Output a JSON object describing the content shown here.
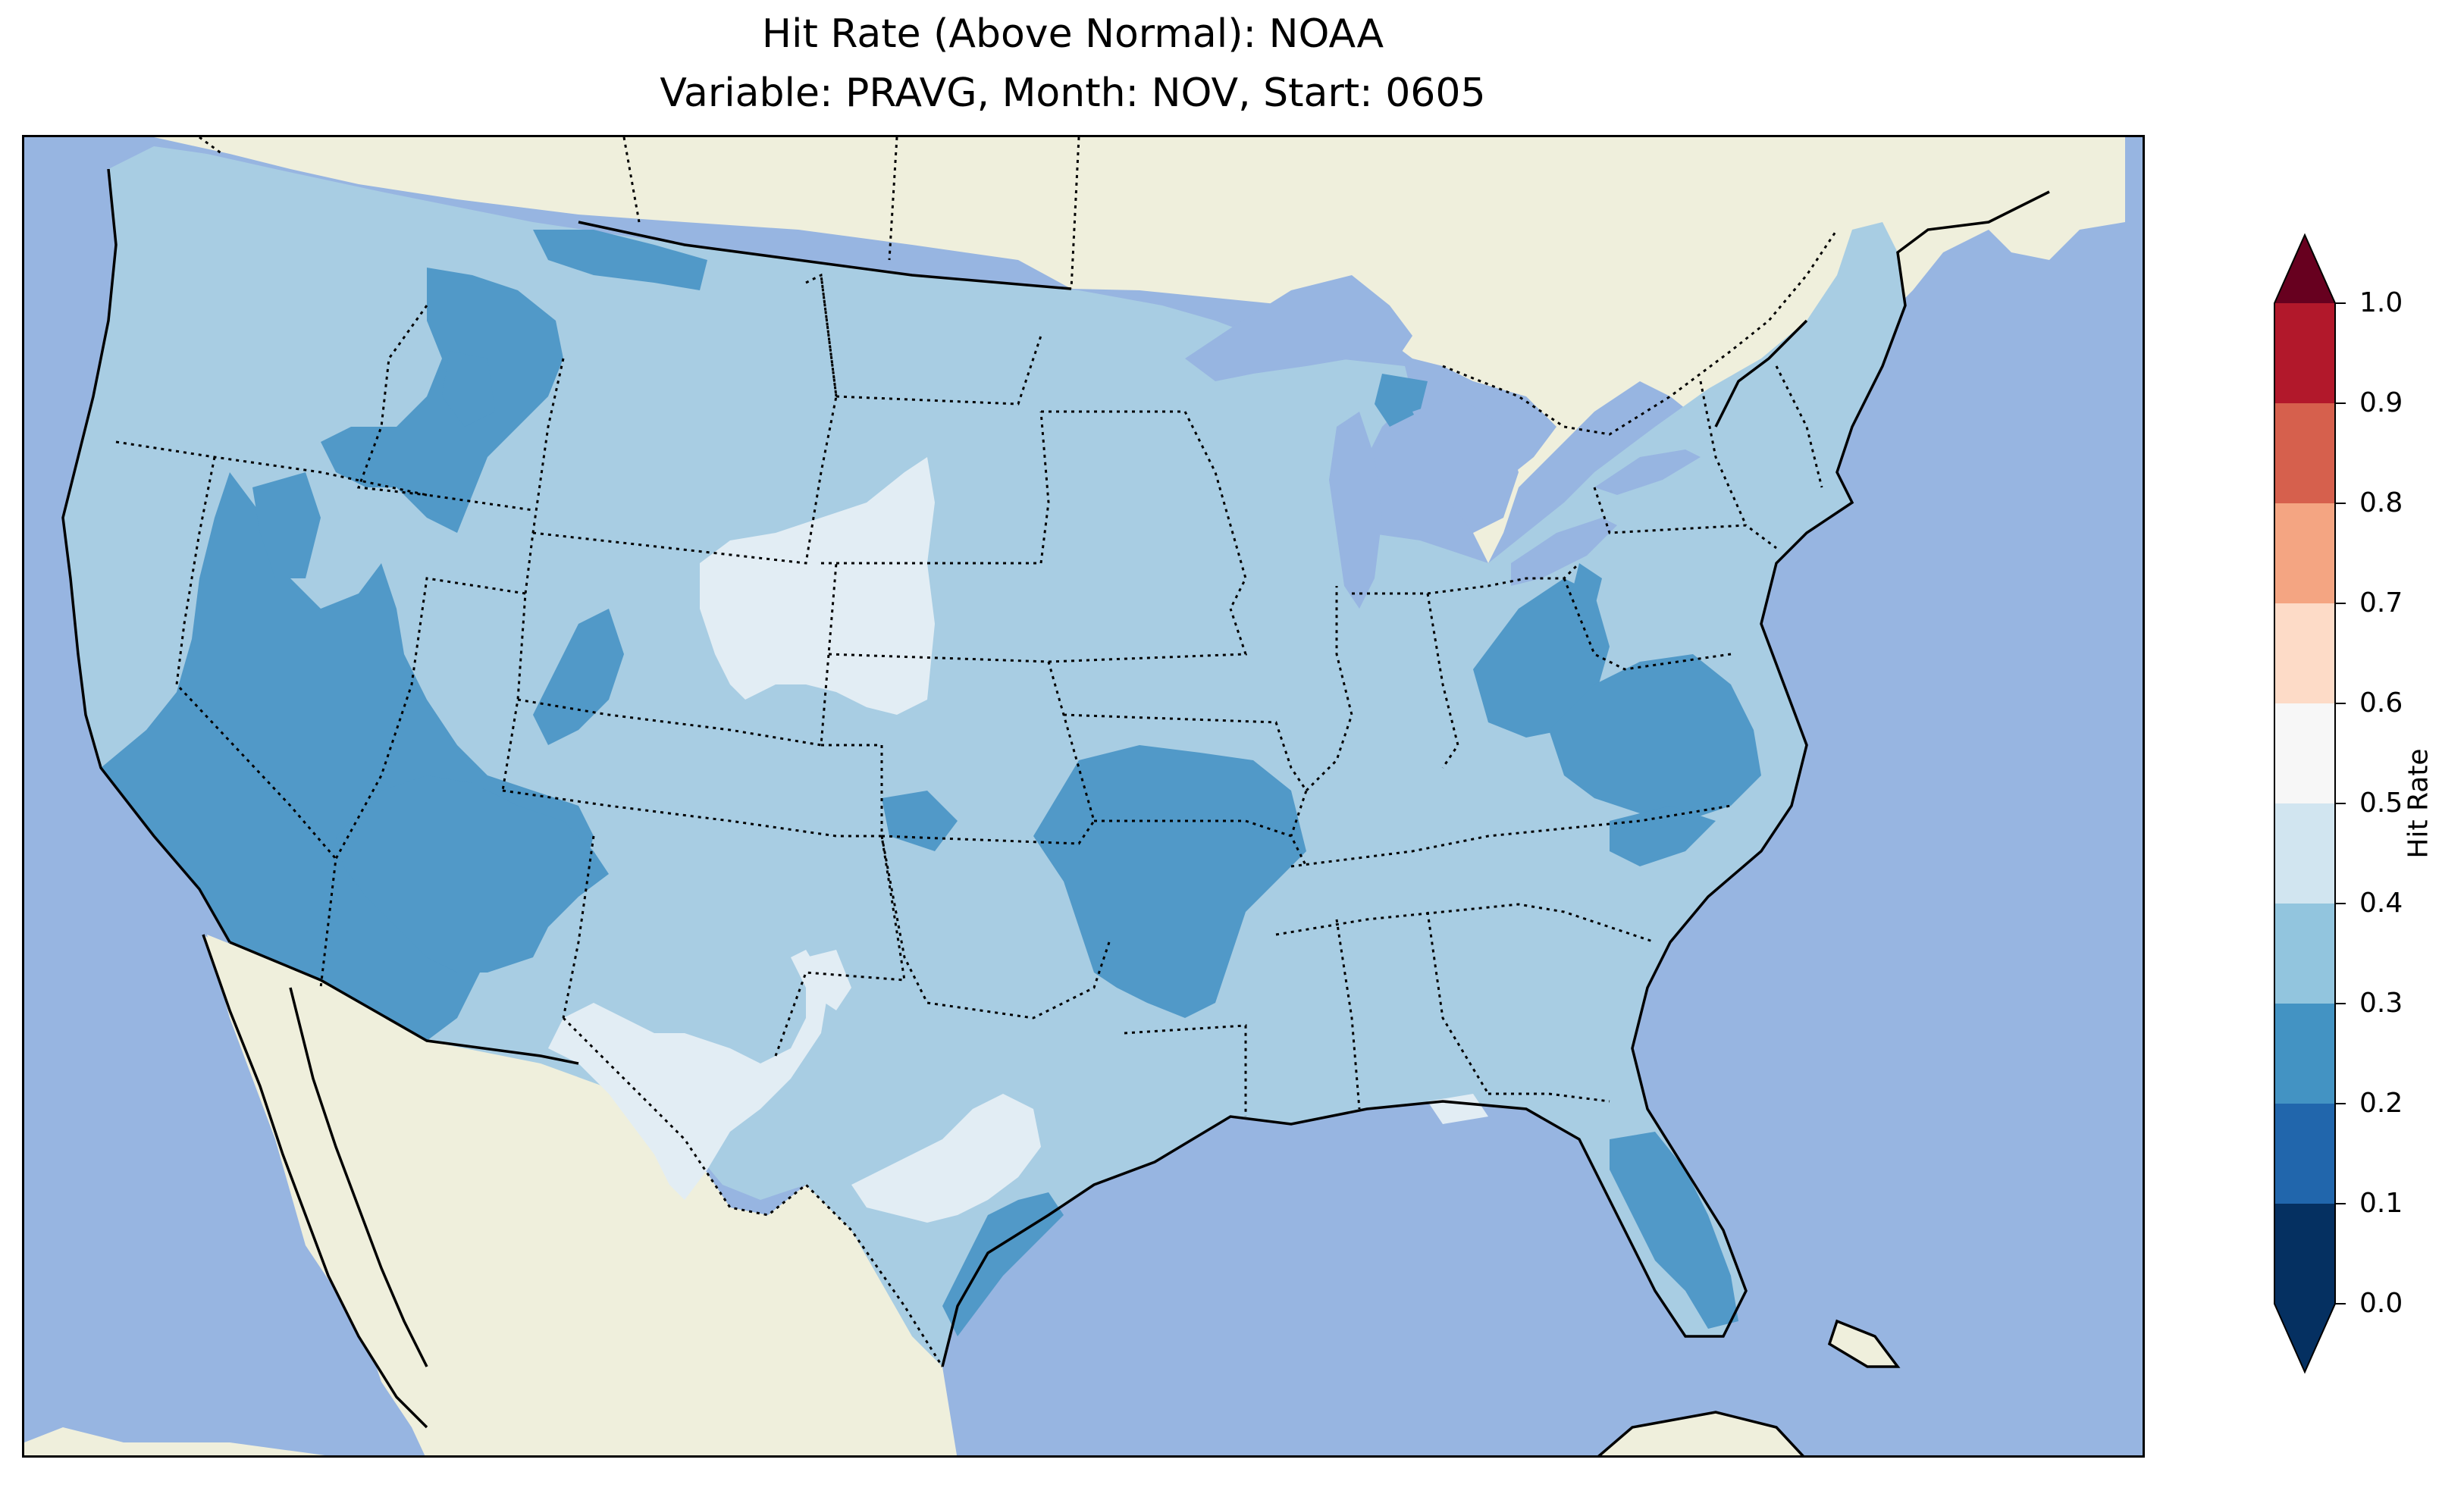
{
  "title_line1": "Hit Rate (Above Normal): NOAA",
  "title_line2": "Variable: PRAVG, Month: NOV, Start: 0605",
  "colorbar": {
    "label": "Hit Rate",
    "ticks": [
      "0.0",
      "0.1",
      "0.2",
      "0.3",
      "0.4",
      "0.5",
      "0.6",
      "0.7",
      "0.8",
      "0.9",
      "1.0"
    ],
    "bin_colors": [
      "#053061",
      "#2166ac",
      "#4393c3",
      "#92c5de",
      "#d1e5f0",
      "#f7f7f7",
      "#fddbc7",
      "#f4a582",
      "#d6604d",
      "#b2182b"
    ],
    "under_color": "#053061",
    "over_color": "#67001f",
    "extend": "both"
  },
  "map": {
    "projection": "Lambert conformal (CONUS)",
    "ocean_color": "#97b5e1",
    "land_color": "#efefdc",
    "lake_color": "#97b5e1",
    "dominant_bin": "0.3-0.4",
    "field_colors": {
      "0.2-0.3": "#5199c8",
      "0.3-0.4": "#a8cde3",
      "0.4-0.5": "#e2edf4"
    },
    "regions": [
      {
        "name": "California / Nevada south",
        "bin": "0.2-0.3"
      },
      {
        "name": "Arizona",
        "bin": "0.2-0.3"
      },
      {
        "name": "Idaho / western Montana",
        "bin": "0.2-0.3"
      },
      {
        "name": "Oklahoma / Arkansas",
        "bin": "0.2-0.3"
      },
      {
        "name": "West Virginia / Virginia",
        "bin": "0.2-0.3"
      },
      {
        "name": "Florida peninsula",
        "bin": "0.2-0.3"
      },
      {
        "name": "Nebraska / Wyoming border",
        "bin": "0.4-0.5"
      },
      {
        "name": "West Texas / New Mexico south",
        "bin": "0.4-0.5"
      },
      {
        "name": "Central Texas",
        "bin": "0.4-0.5"
      }
    ]
  }
}
